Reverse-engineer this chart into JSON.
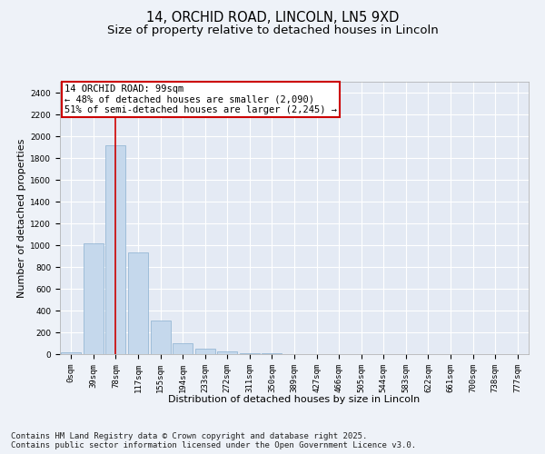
{
  "title_line1": "14, ORCHID ROAD, LINCOLN, LN5 9XD",
  "title_line2": "Size of property relative to detached houses in Lincoln",
  "xlabel": "Distribution of detached houses by size in Lincoln",
  "ylabel": "Number of detached properties",
  "bar_color": "#c5d8ec",
  "bar_edge_color": "#8ab0d0",
  "vline_color": "#cc0000",
  "vline_x": 2,
  "categories": [
    "0sqm",
    "39sqm",
    "78sqm",
    "117sqm",
    "155sqm",
    "194sqm",
    "233sqm",
    "272sqm",
    "311sqm",
    "350sqm",
    "389sqm",
    "427sqm",
    "466sqm",
    "505sqm",
    "544sqm",
    "583sqm",
    "622sqm",
    "661sqm",
    "700sqm",
    "738sqm",
    "777sqm"
  ],
  "values": [
    15,
    1020,
    1920,
    930,
    310,
    100,
    48,
    25,
    12,
    5,
    0,
    0,
    0,
    0,
    0,
    0,
    0,
    0,
    0,
    0,
    0
  ],
  "ylim": [
    0,
    2500
  ],
  "yticks": [
    0,
    200,
    400,
    600,
    800,
    1000,
    1200,
    1400,
    1600,
    1800,
    2000,
    2200,
    2400
  ],
  "annotation_text": "14 ORCHID ROAD: 99sqm\n← 48% of detached houses are smaller (2,090)\n51% of semi-detached houses are larger (2,245) →",
  "footer_line1": "Contains HM Land Registry data © Crown copyright and database right 2025.",
  "footer_line2": "Contains public sector information licensed under the Open Government Licence v3.0.",
  "bg_color": "#eef2f8",
  "plot_bg_color": "#e4eaf4",
  "grid_color": "#ffffff",
  "title_fontsize": 10.5,
  "subtitle_fontsize": 9.5,
  "axis_label_fontsize": 8,
  "tick_fontsize": 6.5,
  "annotation_fontsize": 7.5,
  "footer_fontsize": 6.5
}
